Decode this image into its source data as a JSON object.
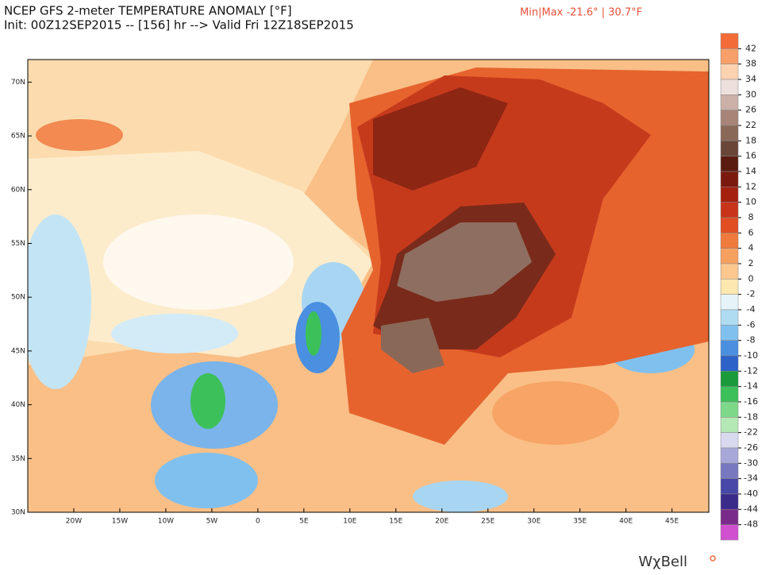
{
  "header": {
    "title": "NCEP GFS 2-meter TEMPERATURE ANOMALY [°F]",
    "subtitle": "Init: 00Z12SEP2015 -- [156] hr --> Valid Fri 12Z18SEP2015",
    "minmax": "Min|Max -21.6° | 30.7°F"
  },
  "map": {
    "latlim": [
      30,
      72.1
    ],
    "lonlim": [
      -25,
      49
    ],
    "lat_ticks": [
      {
        "value": 30,
        "label": "30N"
      },
      {
        "value": 35,
        "label": "35N"
      },
      {
        "value": 40,
        "label": "40N"
      },
      {
        "value": 45,
        "label": "45N"
      },
      {
        "value": 50,
        "label": "50N"
      },
      {
        "value": 55,
        "label": "55N"
      },
      {
        "value": 60,
        "label": "60N"
      },
      {
        "value": 65,
        "label": "65N"
      },
      {
        "value": 70,
        "label": "70N"
      }
    ],
    "lon_ticks": [
      {
        "value": -20,
        "label": "20W"
      },
      {
        "value": -15,
        "label": "15W"
      },
      {
        "value": -10,
        "label": "10W"
      },
      {
        "value": -5,
        "label": "5W"
      },
      0,
      {
        "value": 5,
        "label": "5E"
      },
      {
        "value": 10,
        "label": "10E"
      },
      {
        "value": 15,
        "label": "15E"
      },
      {
        "value": 20,
        "label": "20E"
      },
      {
        "value": 25,
        "label": "25E"
      },
      {
        "value": 30,
        "label": "30E"
      },
      {
        "value": 35,
        "label": "35E"
      },
      {
        "value": 40,
        "label": "40E"
      },
      {
        "value": 45,
        "label": "45E"
      }
    ]
  },
  "colorbar": {
    "levels": [
      42,
      38,
      34,
      30,
      26,
      22,
      18,
      16,
      14,
      12,
      10,
      8,
      6,
      4,
      2,
      0,
      -2,
      -4,
      -6,
      -8,
      -10,
      -12,
      -14,
      -16,
      -18,
      -22,
      -26,
      -30,
      -34,
      -40,
      -44,
      -48
    ],
    "colors": [
      "#f26b38",
      "#f7a06a",
      "#fdd2b0",
      "#ede0dc",
      "#cbb0a8",
      "#a88478",
      "#8a6858",
      "#6a4638",
      "#5a1c10",
      "#7a1a0e",
      "#a5200e",
      "#c8341a",
      "#e04e22",
      "#ee7a3c",
      "#f6a060",
      "#fcc890",
      "#fde8b0",
      "#e6f4fa",
      "#b0dcf2",
      "#80c0ee",
      "#4a8fe0",
      "#2d62c8",
      "#1a9a3a",
      "#3cc05a",
      "#7ed88a",
      "#b4e8b4",
      "#d8d8ee",
      "#a8a8d8",
      "#7878c0",
      "#4848a8",
      "#3a2a8a",
      "#7a2a8a",
      "#d050d0"
    ]
  },
  "logo": "WχBell"
}
